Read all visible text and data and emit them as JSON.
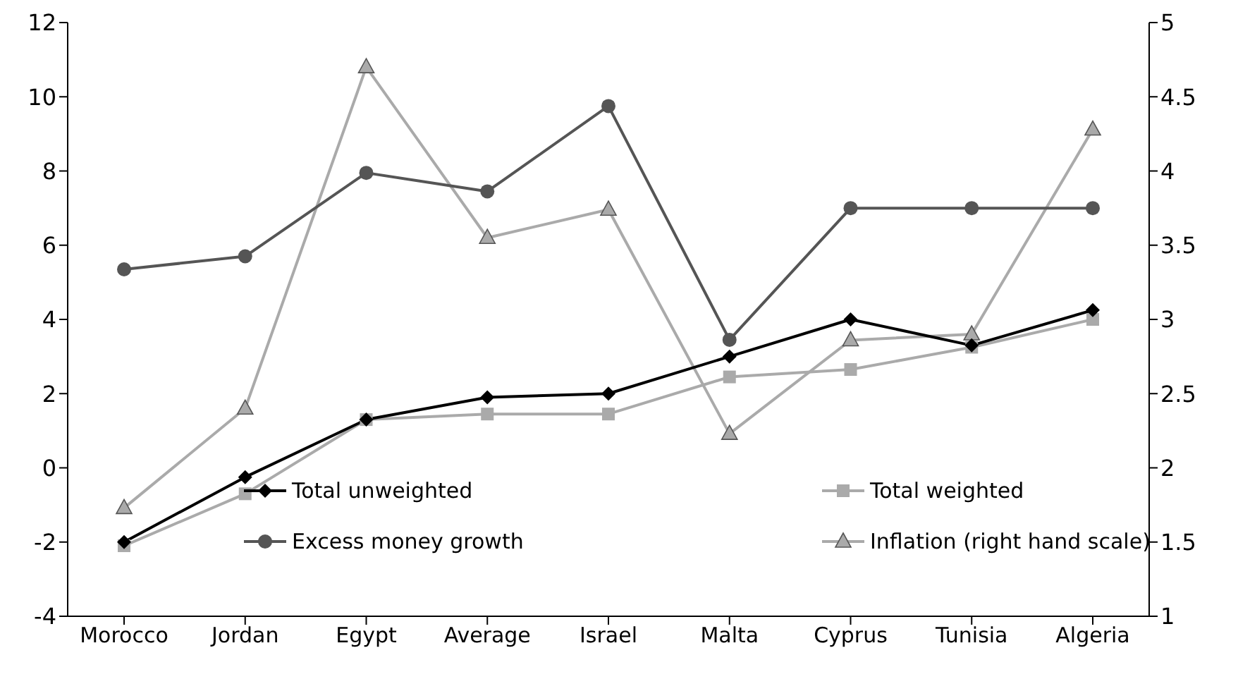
{
  "chart_data": {
    "type": "line",
    "categories": [
      "Morocco",
      "Jordan",
      "Egypt",
      "Average",
      "Israel",
      "Malta",
      "Cyprus",
      "Tunisia",
      "Algeria"
    ],
    "series": [
      {
        "name": "Total unweighted",
        "color": "#000000",
        "marker": "diamond",
        "values": [
          -2.0,
          -0.25,
          1.3,
          1.9,
          2.0,
          3.0,
          4.0,
          3.3,
          4.25
        ]
      },
      {
        "name": "Total weighted",
        "color": "#aaaaaa",
        "marker": "square",
        "values": [
          -2.1,
          -0.7,
          1.3,
          1.45,
          1.45,
          2.45,
          2.65,
          3.25,
          4.0
        ]
      },
      {
        "name": "Excess money growth",
        "color": "#555555",
        "marker": "circle",
        "values": [
          5.35,
          5.7,
          7.95,
          7.45,
          9.75,
          3.45,
          7.0,
          7.0,
          7.0
        ]
      },
      {
        "name": "Inflation (right hand scale)",
        "color": "#aaaaaa",
        "marker": "triangle",
        "axis": "y2",
        "values": [
          1.73,
          2.4,
          4.7,
          3.55,
          3.74,
          2.23,
          2.86,
          2.9,
          4.28
        ]
      }
    ],
    "ylim": [
      -4,
      12
    ],
    "yticks": [
      -4,
      -2,
      0,
      2,
      4,
      6,
      8,
      10,
      12
    ],
    "y2lim": [
      1,
      5
    ],
    "y2ticks": [
      1,
      1.5,
      2,
      2.5,
      3,
      3.5,
      4,
      4.5,
      5
    ],
    "grid": false,
    "legend": "bottom"
  }
}
